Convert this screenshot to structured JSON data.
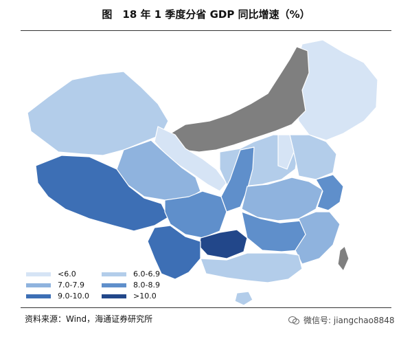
{
  "title": "图　18 年 1 季度分省 GDP 同比增速（%）",
  "legend": [
    {
      "label": "<6.0",
      "color": "#d6e4f5"
    },
    {
      "label": "6.0-6.9",
      "color": "#b3cdea"
    },
    {
      "label": "7.0-7.9",
      "color": "#8fb3de"
    },
    {
      "label": "8.0-8.9",
      "color": "#5f8fcb"
    },
    {
      "label": "9.0-10.0",
      "color": "#3d6fb5"
    },
    {
      "label": ">10.0",
      "color": "#22478a"
    }
  ],
  "nodata_color": "#7f7f7f",
  "source": "资料来源：Wind，海通证券研究所",
  "watermark": "微信号: jiangchao8848"
}
